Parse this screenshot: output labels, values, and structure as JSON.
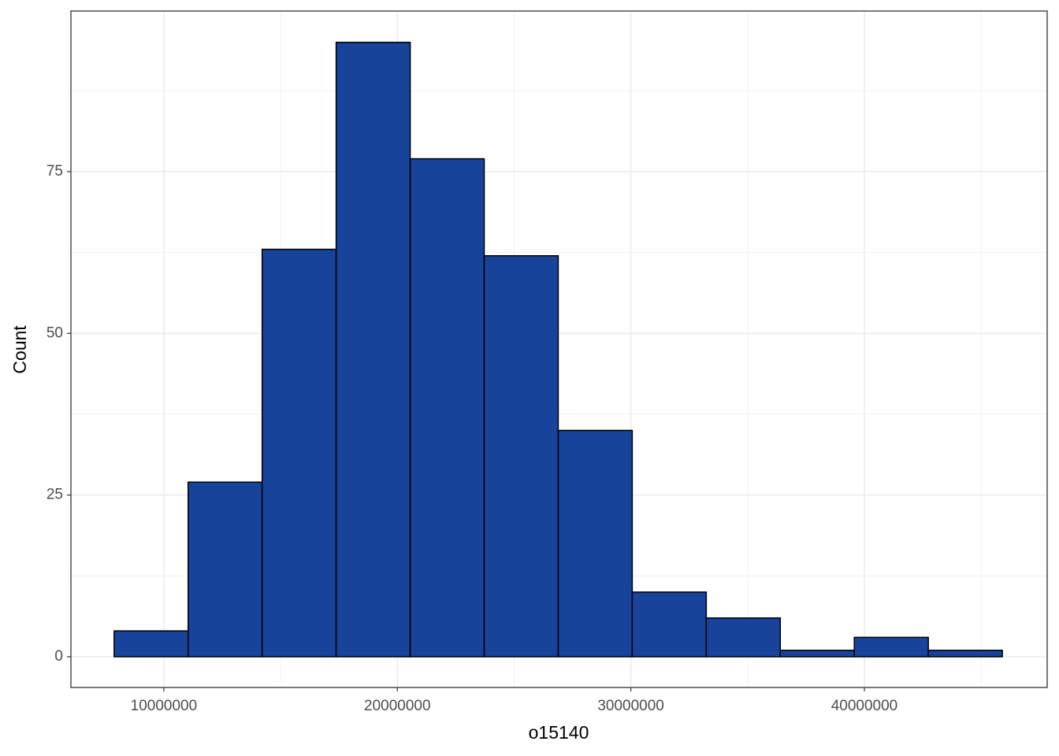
{
  "chart_data": {
    "type": "histogram",
    "x_label": "o15140",
    "y_label": "Count",
    "bins": [
      7870000,
      11040000,
      14210000,
      17380000,
      20550000,
      23720000,
      26890000,
      30060000,
      33230000,
      36400000,
      39570000,
      42740000,
      45910000
    ],
    "values": [
      4,
      27,
      63,
      95,
      77,
      62,
      35,
      10,
      6,
      1,
      3,
      1
    ],
    "color": "#17439a",
    "edge_color": "#000000",
    "xlim": [
      6020000,
      47830000
    ],
    "xticks": [
      10000000,
      20000000,
      30000000,
      40000000
    ],
    "ylim": [
      -4.75,
      99.84
    ],
    "yticks": [
      0,
      25,
      50,
      75
    ],
    "grid": true
  }
}
